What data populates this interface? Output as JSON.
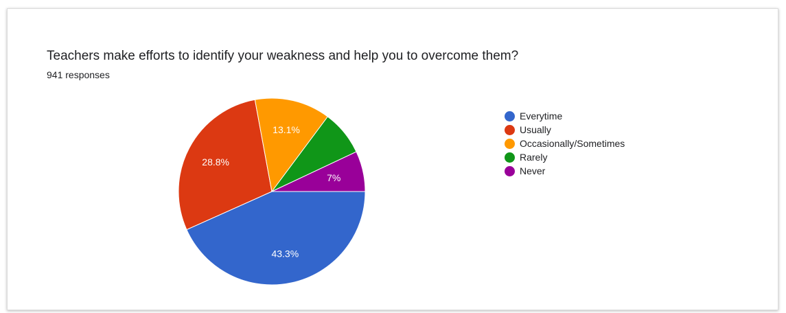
{
  "chart_data": {
    "type": "pie",
    "title": "Teachers make efforts to identify your weakness and help you to overcome them?",
    "subtitle": "941 responses",
    "categories": [
      "Everytime",
      "Usually",
      "Occasionally/Sometimes",
      "Rarely",
      "Never"
    ],
    "values": [
      43.3,
      28.8,
      13.1,
      7.8,
      7.0
    ],
    "value_labels": [
      "43.3%",
      "28.8%",
      "13.1%",
      "",
      "7%"
    ],
    "colors": [
      "#3366cc",
      "#dc3912",
      "#ff9900",
      "#109618",
      "#990099"
    ],
    "legend_position": "right"
  }
}
